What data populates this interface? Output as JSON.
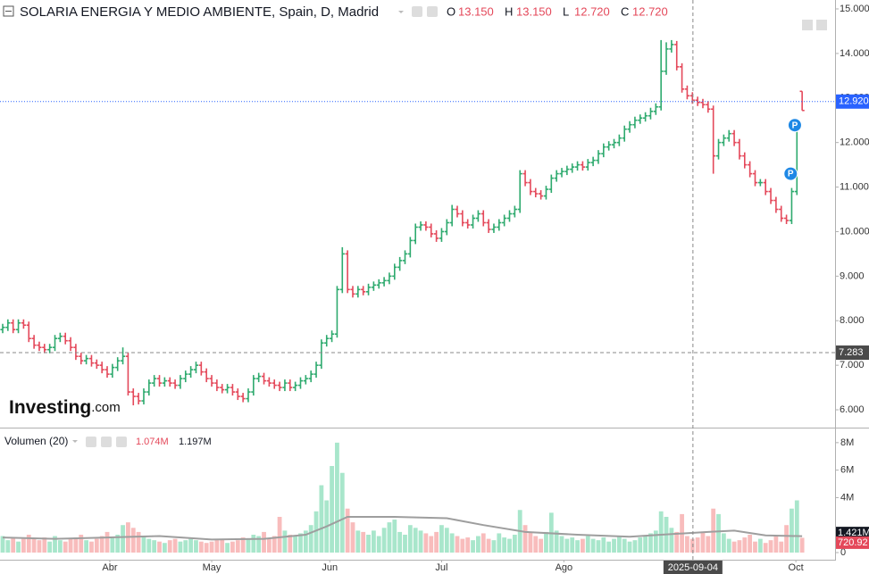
{
  "chart_data": {
    "type": "ohlc",
    "title": "SOLARIA ENERGIA Y MEDIO AMBIENTE, Spain, D, Madrid",
    "legend": [
      {
        "key": "O",
        "value": {
          "value": 13.15,
          "label": "13.150"
        }
      },
      {
        "key": "H",
        "value": {
          "value": 13.15,
          "label": "13.150"
        }
      },
      {
        "key": "L",
        "value": {
          "value": 12.72,
          "label": "12.720"
        }
      },
      {
        "key": "C",
        "value": {
          "value": 12.72,
          "label": "12.720"
        }
      }
    ],
    "up_color": "#2eaa6e",
    "down_color": "#e4485a",
    "xlim": [
      -0.513,
      159.3
    ],
    "xticks": [
      {
        "value": 20.5,
        "label": "Abr"
      },
      {
        "value": 40,
        "label": "May"
      },
      {
        "value": 62.6,
        "label": "Jun"
      },
      {
        "value": 84,
        "label": "Jul"
      },
      {
        "value": 107.4,
        "label": "Ago"
      },
      {
        "value": 151.8,
        "label": "Oct"
      }
    ],
    "ylim": [
      5.62,
      15.2
    ],
    "yticks": [
      {
        "value": 6,
        "label": "6.000"
      },
      {
        "value": 7,
        "label": "7.000"
      },
      {
        "value": 8,
        "label": "8.000"
      },
      {
        "value": 9,
        "label": "9.000"
      },
      {
        "value": 10,
        "label": "10.000"
      },
      {
        "value": 11,
        "label": "11.000"
      },
      {
        "value": 12,
        "label": "12.000"
      },
      {
        "value": 13,
        "label": "13.000"
      },
      {
        "value": 14,
        "label": "14.000"
      },
      {
        "value": 15,
        "label": "15.000"
      }
    ],
    "current_price": {
      "value": 12.92,
      "label": "12.920",
      "color": "#2962ff"
    },
    "crosshair": {
      "x": 132.1,
      "x_label": "2025-09-04",
      "y": 7.283
    },
    "markers": [
      {
        "x": 150.8,
        "y": 11.3,
        "label": "P"
      },
      {
        "x": 151.6,
        "y": 12.39,
        "label": "P"
      }
    ],
    "watermark": [
      "Investing",
      ".com"
    ],
    "bars": [
      [
        7.8,
        7.93,
        7.72,
        7.85
      ],
      [
        7.85,
        8.03,
        7.77,
        7.95
      ],
      [
        7.95,
        8.03,
        7.72,
        7.8
      ],
      [
        7.8,
        8.03,
        7.72,
        7.95
      ],
      [
        7.95,
        8.03,
        7.82,
        7.9
      ],
      [
        7.9,
        7.98,
        7.52,
        7.6
      ],
      [
        7.6,
        7.68,
        7.37,
        7.45
      ],
      [
        7.45,
        7.53,
        7.32,
        7.4
      ],
      [
        7.4,
        7.48,
        7.27,
        7.35
      ],
      [
        7.35,
        7.48,
        7.27,
        7.4
      ],
      [
        7.4,
        7.68,
        7.32,
        7.6
      ],
      [
        7.6,
        7.73,
        7.52,
        7.65
      ],
      [
        7.65,
        7.73,
        7.47,
        7.55
      ],
      [
        7.55,
        7.63,
        7.32,
        7.4
      ],
      [
        7.4,
        7.48,
        7.12,
        7.2
      ],
      [
        7.2,
        7.28,
        7.02,
        7.1
      ],
      [
        7.1,
        7.23,
        7.02,
        7.15
      ],
      [
        7.15,
        7.23,
        6.97,
        7.05
      ],
      [
        7.05,
        7.13,
        6.92,
        7.0
      ],
      [
        7.0,
        7.08,
        6.82,
        6.9
      ],
      [
        6.9,
        6.98,
        6.72,
        6.8
      ],
      [
        6.8,
        7.03,
        6.72,
        6.95
      ],
      [
        6.95,
        7.18,
        6.87,
        7.1
      ],
      [
        7.1,
        7.4,
        7.02,
        7.2
      ],
      [
        7.2,
        7.28,
        6.32,
        6.4
      ],
      [
        6.4,
        6.48,
        6.1,
        6.3
      ],
      [
        6.3,
        6.38,
        6.12,
        6.2
      ],
      [
        6.2,
        6.48,
        6.12,
        6.4
      ],
      [
        6.4,
        6.68,
        6.32,
        6.6
      ],
      [
        6.6,
        6.78,
        6.52,
        6.7
      ],
      [
        6.7,
        6.78,
        6.52,
        6.6
      ],
      [
        6.6,
        6.73,
        6.52,
        6.65
      ],
      [
        6.65,
        6.73,
        6.52,
        6.6
      ],
      [
        6.6,
        6.68,
        6.47,
        6.55
      ],
      [
        6.55,
        6.78,
        6.47,
        6.7
      ],
      [
        6.7,
        6.88,
        6.62,
        6.8
      ],
      [
        6.8,
        6.98,
        6.72,
        6.9
      ],
      [
        6.9,
        7.08,
        6.82,
        7.0
      ],
      [
        7.0,
        7.08,
        6.77,
        6.85
      ],
      [
        6.85,
        6.93,
        6.62,
        6.7
      ],
      [
        6.7,
        6.78,
        6.52,
        6.6
      ],
      [
        6.6,
        6.68,
        6.42,
        6.5
      ],
      [
        6.5,
        6.58,
        6.37,
        6.45
      ],
      [
        6.45,
        6.58,
        6.37,
        6.5
      ],
      [
        6.5,
        6.58,
        6.32,
        6.4
      ],
      [
        6.4,
        6.48,
        6.22,
        6.3
      ],
      [
        6.3,
        6.38,
        6.17,
        6.25
      ],
      [
        6.25,
        6.48,
        6.17,
        6.4
      ],
      [
        6.4,
        6.78,
        6.32,
        6.7
      ],
      [
        6.7,
        6.83,
        6.62,
        6.75
      ],
      [
        6.75,
        6.83,
        6.57,
        6.65
      ],
      [
        6.65,
        6.73,
        6.52,
        6.6
      ],
      [
        6.6,
        6.68,
        6.47,
        6.55
      ],
      [
        6.55,
        6.63,
        6.42,
        6.5
      ],
      [
        6.5,
        6.68,
        6.42,
        6.6
      ],
      [
        6.6,
        6.68,
        6.42,
        6.5
      ],
      [
        6.5,
        6.63,
        6.42,
        6.55
      ],
      [
        6.55,
        6.73,
        6.47,
        6.65
      ],
      [
        6.65,
        6.78,
        6.57,
        6.7
      ],
      [
        6.7,
        6.88,
        6.62,
        6.8
      ],
      [
        6.8,
        7.08,
        6.72,
        7.0
      ],
      [
        7.0,
        7.58,
        6.92,
        7.5
      ],
      [
        7.5,
        7.68,
        7.42,
        7.6
      ],
      [
        7.6,
        7.78,
        7.52,
        7.7
      ],
      [
        7.7,
        8.78,
        7.62,
        8.7
      ],
      [
        8.7,
        9.65,
        8.62,
        9.5
      ],
      [
        9.5,
        9.58,
        8.62,
        8.7
      ],
      [
        8.7,
        8.78,
        8.52,
        8.6
      ],
      [
        8.6,
        8.78,
        8.52,
        8.7
      ],
      [
        8.7,
        8.78,
        8.57,
        8.65
      ],
      [
        8.65,
        8.83,
        8.57,
        8.75
      ],
      [
        8.75,
        8.88,
        8.67,
        8.8
      ],
      [
        8.8,
        8.93,
        8.72,
        8.85
      ],
      [
        8.85,
        8.98,
        8.77,
        8.9
      ],
      [
        8.9,
        9.08,
        8.82,
        9.0
      ],
      [
        9.0,
        9.28,
        8.92,
        9.2
      ],
      [
        9.2,
        9.43,
        9.12,
        9.35
      ],
      [
        9.35,
        9.58,
        9.27,
        9.5
      ],
      [
        9.5,
        9.88,
        9.42,
        9.8
      ],
      [
        9.8,
        10.18,
        9.72,
        10.1
      ],
      [
        10.1,
        10.23,
        10.02,
        10.15
      ],
      [
        10.15,
        10.23,
        10.02,
        10.1
      ],
      [
        10.1,
        10.18,
        9.87,
        9.95
      ],
      [
        9.95,
        10.03,
        9.77,
        9.85
      ],
      [
        9.85,
        10.08,
        9.77,
        10.0
      ],
      [
        10.0,
        10.28,
        9.92,
        10.2
      ],
      [
        10.2,
        10.6,
        10.12,
        10.5
      ],
      [
        10.5,
        10.58,
        10.32,
        10.4
      ],
      [
        10.4,
        10.48,
        10.12,
        10.2
      ],
      [
        10.2,
        10.28,
        10.07,
        10.15
      ],
      [
        10.15,
        10.38,
        10.07,
        10.3
      ],
      [
        10.3,
        10.48,
        10.22,
        10.4
      ],
      [
        10.4,
        10.48,
        10.12,
        10.2
      ],
      [
        10.2,
        10.28,
        9.97,
        10.05
      ],
      [
        10.05,
        10.18,
        9.97,
        10.1
      ],
      [
        10.1,
        10.28,
        10.02,
        10.2
      ],
      [
        10.2,
        10.38,
        10.12,
        10.3
      ],
      [
        10.3,
        10.48,
        10.22,
        10.4
      ],
      [
        10.4,
        10.58,
        10.32,
        10.5
      ],
      [
        10.5,
        11.38,
        10.42,
        11.3
      ],
      [
        11.3,
        11.38,
        11.02,
        11.1
      ],
      [
        11.1,
        11.18,
        10.82,
        10.9
      ],
      [
        10.9,
        10.98,
        10.77,
        10.85
      ],
      [
        10.85,
        10.93,
        10.72,
        10.8
      ],
      [
        10.8,
        11.03,
        10.72,
        10.95
      ],
      [
        10.95,
        11.28,
        10.87,
        11.2
      ],
      [
        11.2,
        11.38,
        11.12,
        11.3
      ],
      [
        11.3,
        11.43,
        11.22,
        11.35
      ],
      [
        11.35,
        11.48,
        11.27,
        11.4
      ],
      [
        11.4,
        11.53,
        11.32,
        11.45
      ],
      [
        11.45,
        11.58,
        11.37,
        11.5
      ],
      [
        11.5,
        11.58,
        11.37,
        11.45
      ],
      [
        11.45,
        11.63,
        11.37,
        11.55
      ],
      [
        11.55,
        11.68,
        11.47,
        11.6
      ],
      [
        11.6,
        11.83,
        11.52,
        11.75
      ],
      [
        11.75,
        11.98,
        11.67,
        11.9
      ],
      [
        11.9,
        12.03,
        11.82,
        11.95
      ],
      [
        11.95,
        12.08,
        11.87,
        12.0
      ],
      [
        12.0,
        12.18,
        11.92,
        12.1
      ],
      [
        12.1,
        12.38,
        12.02,
        12.3
      ],
      [
        12.3,
        12.48,
        12.22,
        12.4
      ],
      [
        12.4,
        12.58,
        12.32,
        12.5
      ],
      [
        12.5,
        12.63,
        12.42,
        12.55
      ],
      [
        12.55,
        12.68,
        12.47,
        12.6
      ],
      [
        12.6,
        12.78,
        12.52,
        12.7
      ],
      [
        12.7,
        12.88,
        12.62,
        12.8
      ],
      [
        12.8,
        14.3,
        12.72,
        13.6
      ],
      [
        13.6,
        14.25,
        13.52,
        14.1
      ],
      [
        14.1,
        14.3,
        14.02,
        14.2
      ],
      [
        14.2,
        14.28,
        13.62,
        13.7
      ],
      [
        13.7,
        13.78,
        13.12,
        13.2
      ],
      [
        13.2,
        13.28,
        12.97,
        13.05
      ],
      [
        13.05,
        13.13,
        12.87,
        12.95
      ],
      [
        12.95,
        13.03,
        12.82,
        12.9
      ],
      [
        12.9,
        12.98,
        12.77,
        12.85
      ],
      [
        12.85,
        12.93,
        12.67,
        12.75
      ],
      [
        12.75,
        12.83,
        11.3,
        11.7
      ],
      [
        11.7,
        12.08,
        11.62,
        12.0
      ],
      [
        12.0,
        12.18,
        11.92,
        12.1
      ],
      [
        12.1,
        12.28,
        12.02,
        12.2
      ],
      [
        12.2,
        12.28,
        11.92,
        12.0
      ],
      [
        12.0,
        12.08,
        11.62,
        11.7
      ],
      [
        11.7,
        11.78,
        11.42,
        11.5
      ],
      [
        11.5,
        11.58,
        11.22,
        11.3
      ],
      [
        11.3,
        11.38,
        11.02,
        11.1
      ],
      [
        11.1,
        11.18,
        11.02,
        11.1
      ],
      [
        11.1,
        11.18,
        10.82,
        10.9
      ],
      [
        10.9,
        10.98,
        10.62,
        10.7
      ],
      [
        10.7,
        10.78,
        10.42,
        10.5
      ],
      [
        10.5,
        10.58,
        10.22,
        10.3
      ],
      [
        10.3,
        10.38,
        10.17,
        10.25
      ],
      [
        10.25,
        10.98,
        10.17,
        10.9
      ],
      [
        10.9,
        12.48,
        10.82,
        12.4
      ],
      [
        13.15,
        13.15,
        12.72,
        12.72
      ]
    ],
    "volume": {
      "title": "Volumen (20)",
      "last": {
        "value": 1074000,
        "label": "1.074M"
      },
      "ma_last": {
        "value": 1197000,
        "label": "1.197M"
      },
      "up_color": "#a8e6cb",
      "down_color": "#f8bcbc",
      "ma_color": "#9e9e9e",
      "ylim": [
        -520000,
        8770000
      ],
      "yticks": [
        0,
        {
          "value": 4000000,
          "label": "4M"
        },
        {
          "value": 6000000,
          "label": "6M"
        },
        {
          "value": 8000000,
          "label": "8M"
        }
      ],
      "badges": [
        {
          "value": 1421000,
          "label": "1.421M",
          "color": "#131722"
        },
        {
          "value": 720920,
          "label": "720.92",
          "color": "#e4485a"
        }
      ],
      "values": [
        1200000,
        900000,
        1100000,
        800000,
        1000000,
        1300000,
        1000000,
        900000,
        1100000,
        800000,
        1200000,
        900000,
        800000,
        1000000,
        1100000,
        1300000,
        900000,
        800000,
        1000000,
        1200000,
        1500000,
        1100000,
        1300000,
        2000000,
        2200000,
        1800000,
        1500000,
        1200000,
        1000000,
        900000,
        800000,
        700000,
        900000,
        1000000,
        800000,
        900000,
        1000000,
        900000,
        800000,
        700000,
        800000,
        900000,
        1000000,
        700000,
        800000,
        900000,
        1100000,
        1000000,
        1300000,
        1200000,
        1500000,
        1000000,
        1200000,
        2600000,
        1600000,
        1300000,
        1200000,
        1400000,
        1600000,
        2000000,
        3000000,
        4900000,
        3800000,
        6300000,
        8000000,
        5800000,
        3200000,
        2200000,
        1600000,
        1500000,
        1300000,
        1600000,
        1200000,
        1800000,
        2200000,
        2400000,
        1500000,
        1300000,
        2000000,
        1800000,
        1600000,
        1400000,
        1200000,
        1500000,
        2000000,
        1800000,
        1400000,
        1200000,
        1000000,
        1100000,
        900000,
        1200000,
        1400000,
        1000000,
        900000,
        1400000,
        1100000,
        1000000,
        1300000,
        3100000,
        2000000,
        1500000,
        1200000,
        1000000,
        1500000,
        2900000,
        1600000,
        1200000,
        1000000,
        1100000,
        900000,
        1000000,
        1200000,
        1000000,
        900000,
        1100000,
        800000,
        1000000,
        1200000,
        1000000,
        800000,
        900000,
        1100000,
        1200000,
        1400000,
        1600000,
        3000000,
        2600000,
        1800000,
        1500000,
        2800000,
        1200000,
        1000000,
        1100000,
        1500000,
        1200000,
        3200000,
        2800000,
        1400000,
        1000000,
        800000,
        900000,
        1100000,
        1300000,
        800000,
        1000000,
        700000,
        900000,
        1200000,
        800000,
        2000000,
        3200000,
        3800000,
        1074000
      ],
      "ma": {
        "x": [
          0,
          10,
          20,
          30,
          40,
          50,
          58,
          62,
          66,
          75,
          85,
          92,
          100,
          110,
          120,
          126,
          135,
          140,
          146,
          153
        ],
        "values": [
          1100000,
          1000000,
          1100000,
          1200000,
          950000,
          1000000,
          1300000,
          1900000,
          2600000,
          2600000,
          2500000,
          2000000,
          1500000,
          1300000,
          1150000,
          1300000,
          1500000,
          1600000,
          1250000,
          1197000
        ]
      }
    }
  }
}
